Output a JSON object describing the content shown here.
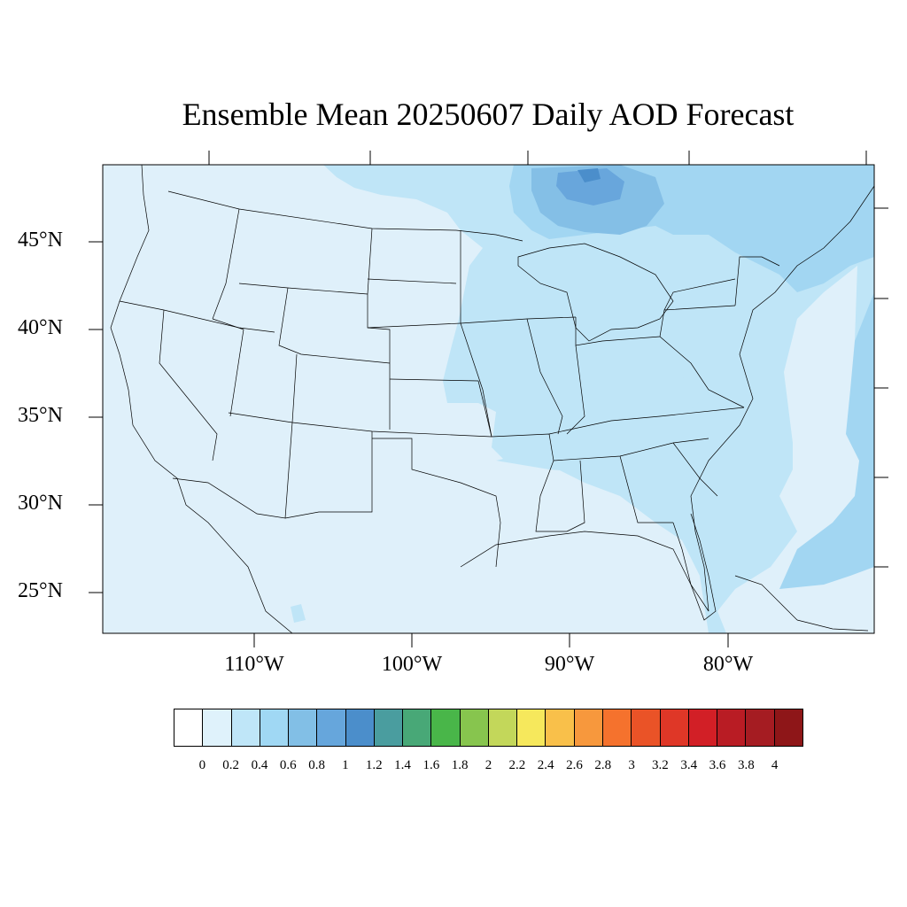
{
  "title": "Ensemble Mean 20250607 Daily AOD Forecast",
  "map": {
    "projection": "lambert-conformal",
    "region": "Contiguous United States",
    "variable": "Aerosol Optical Depth",
    "ocean_color": "#dff0fa",
    "latitude_labels": [
      "45°N",
      "40°N",
      "35°N",
      "30°N",
      "25°N"
    ],
    "longitude_labels": [
      "110°W",
      "100°W",
      "90°W",
      "80°W"
    ]
  },
  "colorbar": {
    "levels": [
      "0",
      "0.2",
      "0.4",
      "0.6",
      "0.8",
      "1",
      "1.2",
      "1.4",
      "1.6",
      "1.8",
      "2",
      "2.2",
      "2.4",
      "2.6",
      "2.8",
      "3",
      "3.2",
      "3.4",
      "3.6",
      "3.8",
      "4"
    ],
    "colors": [
      "#ffffff",
      "#dff2fb",
      "#bfe6f8",
      "#a0d8f4",
      "#82bfe6",
      "#66a6dc",
      "#4b8ecb",
      "#4a9d9f",
      "#48a877",
      "#49b649",
      "#87c54e",
      "#c3d75a",
      "#f6e85c",
      "#f9c04a",
      "#f7983d",
      "#f5722d",
      "#ea5327",
      "#df3727",
      "#d21f26",
      "#b91c24",
      "#a51c22",
      "#8e1618"
    ]
  }
}
